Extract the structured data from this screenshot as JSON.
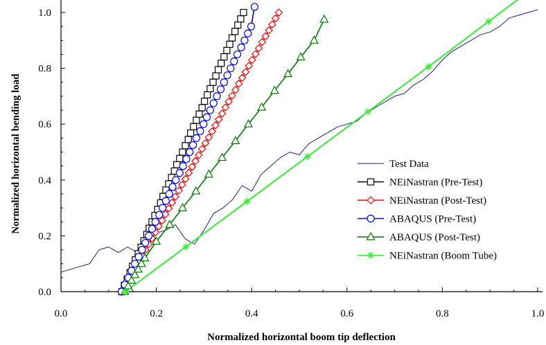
{
  "chart_data": {
    "type": "line",
    "title": "",
    "xlabel": "Normalized horizontal boom tip deflection",
    "ylabel": "Normalized horizontal bending load",
    "xlim": [
      0.0,
      1.0
    ],
    "ylim": [
      0.0,
      1.0
    ],
    "x_ticks": [
      {
        "value": 0.0,
        "label": "0.0"
      },
      {
        "value": 0.2,
        "label": "0.2"
      },
      {
        "value": 0.4,
        "label": "0.4"
      },
      {
        "value": 0.6,
        "label": "0.6"
      },
      {
        "value": 0.8,
        "label": "0.8"
      },
      {
        "value": 1.0,
        "label": "1.0"
      }
    ],
    "y_ticks": [
      {
        "value": 0.0,
        "label": "0.0"
      },
      {
        "value": 0.2,
        "label": "0.2"
      },
      {
        "value": 0.4,
        "label": "0.4"
      },
      {
        "value": 0.6,
        "label": "0.6"
      },
      {
        "value": 0.8,
        "label": "0.8"
      },
      {
        "value": 1.0,
        "label": "1.0"
      }
    ],
    "grid": false,
    "legend_position": "right",
    "series": [
      {
        "name": "Test Data",
        "color": "#1c1c80",
        "marker": "none",
        "x": [
          0.0,
          0.02,
          0.04,
          0.06,
          0.08,
          0.1,
          0.12,
          0.14,
          0.16,
          0.18,
          0.2,
          0.22,
          0.24,
          0.26,
          0.28,
          0.3,
          0.32,
          0.34,
          0.36,
          0.38,
          0.4,
          0.42,
          0.44,
          0.46,
          0.48,
          0.5,
          0.52,
          0.54,
          0.56,
          0.58,
          0.6,
          0.62,
          0.64,
          0.66,
          0.68,
          0.7,
          0.72,
          0.74,
          0.76,
          0.78,
          0.8,
          0.82,
          0.84,
          0.86,
          0.88,
          0.9,
          0.92,
          0.94,
          0.96,
          0.98,
          1.0
        ],
        "y": [
          0.07,
          0.08,
          0.09,
          0.1,
          0.15,
          0.16,
          0.14,
          0.16,
          0.14,
          0.17,
          0.21,
          0.22,
          0.24,
          0.19,
          0.17,
          0.22,
          0.28,
          0.3,
          0.33,
          0.38,
          0.36,
          0.42,
          0.45,
          0.48,
          0.5,
          0.49,
          0.53,
          0.55,
          0.57,
          0.59,
          0.6,
          0.61,
          0.64,
          0.66,
          0.68,
          0.7,
          0.71,
          0.74,
          0.76,
          0.79,
          0.83,
          0.86,
          0.88,
          0.9,
          0.92,
          0.93,
          0.95,
          0.98,
          0.99,
          1.0,
          1.01
        ]
      },
      {
        "name": "NEiNastran (Pre-Test)",
        "color": "#000000",
        "marker": "square",
        "x": [
          0.128,
          0.133,
          0.139,
          0.145,
          0.15,
          0.156,
          0.162,
          0.168,
          0.174,
          0.18,
          0.185,
          0.191,
          0.197,
          0.203,
          0.209,
          0.214,
          0.22,
          0.226,
          0.232,
          0.238,
          0.243,
          0.249,
          0.255,
          0.261,
          0.267,
          0.272,
          0.278,
          0.284,
          0.29,
          0.296,
          0.301,
          0.307,
          0.313,
          0.319,
          0.325,
          0.33,
          0.336,
          0.342,
          0.348,
          0.354,
          0.359,
          0.365,
          0.371,
          0.377,
          0.383
        ],
        "y": [
          0.0,
          0.023,
          0.045,
          0.068,
          0.091,
          0.114,
          0.136,
          0.159,
          0.182,
          0.205,
          0.227,
          0.25,
          0.273,
          0.295,
          0.318,
          0.341,
          0.364,
          0.386,
          0.409,
          0.432,
          0.455,
          0.477,
          0.5,
          0.523,
          0.545,
          0.568,
          0.591,
          0.614,
          0.636,
          0.659,
          0.682,
          0.705,
          0.727,
          0.75,
          0.773,
          0.795,
          0.818,
          0.841,
          0.864,
          0.886,
          0.909,
          0.932,
          0.955,
          0.977,
          1.0
        ]
      },
      {
        "name": "NEiNastran (Post-Test)",
        "color": "#ff0000",
        "marker": "diamond",
        "x": [
          0.128,
          0.135,
          0.142,
          0.149,
          0.156,
          0.163,
          0.17,
          0.177,
          0.184,
          0.191,
          0.198,
          0.205,
          0.212,
          0.219,
          0.226,
          0.233,
          0.24,
          0.247,
          0.254,
          0.261,
          0.268,
          0.275,
          0.282,
          0.289,
          0.296,
          0.303,
          0.31,
          0.317,
          0.324,
          0.331,
          0.338,
          0.345,
          0.352,
          0.359,
          0.366,
          0.373,
          0.38,
          0.387,
          0.394,
          0.401,
          0.408,
          0.415,
          0.422,
          0.429,
          0.436,
          0.443,
          0.45,
          0.457
        ],
        "y": [
          0.0,
          0.021,
          0.043,
          0.064,
          0.085,
          0.106,
          0.128,
          0.149,
          0.17,
          0.191,
          0.213,
          0.234,
          0.255,
          0.277,
          0.298,
          0.319,
          0.34,
          0.362,
          0.383,
          0.404,
          0.426,
          0.447,
          0.468,
          0.489,
          0.511,
          0.532,
          0.553,
          0.574,
          0.596,
          0.617,
          0.638,
          0.66,
          0.681,
          0.702,
          0.723,
          0.745,
          0.766,
          0.787,
          0.809,
          0.83,
          0.851,
          0.872,
          0.894,
          0.915,
          0.936,
          0.957,
          0.979,
          1.0
        ]
      },
      {
        "name": "ABAQUS (Pre-Test)",
        "color": "#0000ff",
        "marker": "circle",
        "x": [
          0.127,
          0.134,
          0.141,
          0.148,
          0.155,
          0.163,
          0.17,
          0.177,
          0.184,
          0.191,
          0.198,
          0.206,
          0.213,
          0.22,
          0.227,
          0.234,
          0.241,
          0.249,
          0.256,
          0.263,
          0.27,
          0.277,
          0.284,
          0.292,
          0.299,
          0.306,
          0.313,
          0.32,
          0.327,
          0.335,
          0.342,
          0.349,
          0.356,
          0.363,
          0.37,
          0.378,
          0.385,
          0.392,
          0.399,
          0.406
        ],
        "y": [
          0.0,
          0.025,
          0.05,
          0.075,
          0.1,
          0.125,
          0.15,
          0.175,
          0.2,
          0.225,
          0.25,
          0.275,
          0.3,
          0.325,
          0.35,
          0.375,
          0.4,
          0.425,
          0.45,
          0.475,
          0.5,
          0.525,
          0.55,
          0.575,
          0.6,
          0.625,
          0.65,
          0.675,
          0.7,
          0.725,
          0.75,
          0.775,
          0.8,
          0.825,
          0.85,
          0.875,
          0.9,
          0.925,
          0.95,
          1.02
        ]
      },
      {
        "name": "ABAQUS (Post-Test)",
        "color": "#007a00",
        "marker": "triangle",
        "x": [
          0.134,
          0.141,
          0.148,
          0.155,
          0.162,
          0.169,
          0.176,
          0.2,
          0.228,
          0.255,
          0.283,
          0.31,
          0.338,
          0.366,
          0.393,
          0.421,
          0.448,
          0.476,
          0.503,
          0.531,
          0.552
        ],
        "y": [
          0.0,
          0.02,
          0.04,
          0.06,
          0.08,
          0.1,
          0.12,
          0.18,
          0.24,
          0.3,
          0.36,
          0.42,
          0.48,
          0.54,
          0.6,
          0.66,
          0.72,
          0.78,
          0.84,
          0.9,
          0.975
        ]
      },
      {
        "name": "NEiNastran (Boom Tube)",
        "color": "#33ee33",
        "marker": "star",
        "x": [
          0.135,
          0.262,
          0.39,
          0.517,
          0.644,
          0.771,
          0.897,
          1.0
        ],
        "y": [
          0.0,
          0.161,
          0.323,
          0.484,
          0.645,
          0.806,
          0.968,
          1.1
        ]
      }
    ]
  }
}
